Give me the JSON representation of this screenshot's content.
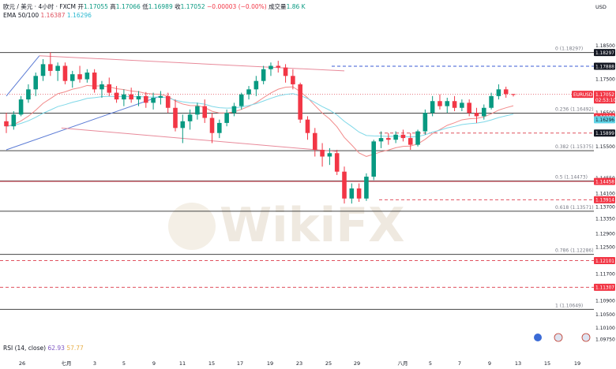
{
  "header": {
    "symbol_line": "欧元 / 美元 · 4小时 · FXCM",
    "open_label": "开",
    "open": "1.17055",
    "high_label": "高",
    "high": "1.17066",
    "low_label": "低",
    "low": "1.16989",
    "close_label": "收",
    "close": "1.17052",
    "change": "−0.00003 (−0.00%)",
    "volume_label": "成交量",
    "volume": "1.86 K",
    "ema_label": "EMA 50/100",
    "ema50": "1.16387",
    "ema100": "1.16296",
    "rsi_label": "RSI (14, close)",
    "rsi": "62.93",
    "rsi_ma": "57.77"
  },
  "currency": "USD",
  "watermark": "WikiFX",
  "colors": {
    "up": "#089981",
    "down": "#f23645",
    "ema50": "#f28b8b",
    "ema100": "#7fd8e8",
    "trend_blue": "#5b7bd5",
    "trend_red": "#e88a9a",
    "level_black": "#444444",
    "level_red": "#e0525f"
  },
  "chart_data": {
    "type": "candlestick",
    "symbol": "EURUSD",
    "timeframe": "4H",
    "ylim": [
      1.0925,
      1.1925
    ],
    "y_ticks": [
      1.185,
      1.175,
      1.165,
      1.155,
      1.1455,
      1.141,
      1.137,
      1.1335,
      1.129,
      1.125,
      1.121,
      1.117,
      1.113,
      1.109,
      1.105,
      1.101,
      1.0975
    ],
    "y_tick_labels": [
      "1.18500",
      "1.17500",
      "1.16500",
      "1.15500",
      "1.14550",
      "1.14100",
      "1.13700",
      "1.13350",
      "1.12900",
      "1.12500",
      "1.12100",
      "1.11700",
      "1.11300",
      "1.10900",
      "1.10500",
      "1.10100",
      "1.09750"
    ],
    "x_tick_labels": [
      "26",
      "七月",
      "3",
      "5",
      "9",
      "11",
      "15",
      "17",
      "19",
      "23",
      "25",
      "29",
      "八月",
      "5",
      "7",
      "9",
      "13",
      "15",
      "19"
    ],
    "fib_levels": [
      {
        "label": "0 (1.18297)",
        "value": 1.18297
      },
      {
        "label": "0.236 (1.16492)",
        "value": 1.16492
      },
      {
        "label": "0.382 (1.15375)",
        "value": 1.15375
      },
      {
        "label": "0.5 (1.14473)",
        "value": 1.14473
      },
      {
        "label": "0.618 (1.13571)",
        "value": 1.13571
      },
      {
        "label": "0.786 (1.12286)",
        "value": 1.12286
      },
      {
        "label": "1 (1.10649)",
        "value": 1.10649
      }
    ],
    "price_tags": [
      {
        "label": "1.18297",
        "value": 1.18297,
        "style": "dark"
      },
      {
        "label": "1.17888",
        "value": 1.17888,
        "style": "dark"
      },
      {
        "label": "EURUSD",
        "value": 1.17052,
        "style": "red-sym"
      },
      {
        "label": "1.17052",
        "value": 1.17052,
        "style": "red"
      },
      {
        "label": "02:53:10",
        "value": 1.16885,
        "style": "time"
      },
      {
        "label": "1.16387",
        "value": 1.16387,
        "style": "red"
      },
      {
        "label": "1.16296",
        "value": 1.16296,
        "style": "cyan"
      },
      {
        "label": "1.15899",
        "value": 1.15899,
        "style": "dark"
      },
      {
        "label": "1.14458",
        "value": 1.14458,
        "style": "red"
      },
      {
        "label": "1.13914",
        "value": 1.13914,
        "style": "red"
      },
      {
        "label": "1.12101",
        "value": 1.12101,
        "style": "red"
      },
      {
        "label": "1.11307",
        "value": 1.11307,
        "style": "red"
      }
    ],
    "h_dashed_levels": [
      1.17888,
      1.15899,
      1.13914,
      1.12101,
      1.11307
    ],
    "h_solid_red_level": 1.14458,
    "candles": [
      [
        1.1625,
        1.165,
        1.159,
        1.161
      ],
      [
        1.161,
        1.1655,
        1.16,
        1.1645
      ],
      [
        1.1645,
        1.17,
        1.164,
        1.169
      ],
      [
        1.169,
        1.1735,
        1.168,
        1.172
      ],
      [
        1.172,
        1.177,
        1.17,
        1.176
      ],
      [
        1.176,
        1.181,
        1.1745,
        1.1795
      ],
      [
        1.1795,
        1.183,
        1.176,
        1.1775
      ],
      [
        1.1775,
        1.18,
        1.1745,
        1.179
      ],
      [
        1.179,
        1.18,
        1.1735,
        1.1745
      ],
      [
        1.1745,
        1.1775,
        1.1725,
        1.1765
      ],
      [
        1.1765,
        1.179,
        1.174,
        1.175
      ],
      [
        1.175,
        1.178,
        1.174,
        1.177
      ],
      [
        1.177,
        1.178,
        1.171,
        1.172
      ],
      [
        1.172,
        1.1745,
        1.1695,
        1.1735
      ],
      [
        1.1735,
        1.1755,
        1.17,
        1.171
      ],
      [
        1.171,
        1.173,
        1.168,
        1.169
      ],
      [
        1.169,
        1.172,
        1.167,
        1.1705
      ],
      [
        1.1705,
        1.1725,
        1.168,
        1.169
      ],
      [
        1.169,
        1.1715,
        1.167,
        1.17
      ],
      [
        1.17,
        1.1712,
        1.1665,
        1.168
      ],
      [
        1.168,
        1.171,
        1.166,
        1.1695
      ],
      [
        1.1695,
        1.1715,
        1.1675,
        1.17
      ],
      [
        1.17,
        1.171,
        1.165,
        1.1665
      ],
      [
        1.1665,
        1.169,
        1.1595,
        1.1605
      ],
      [
        1.1605,
        1.1645,
        1.156,
        1.1625
      ],
      [
        1.1625,
        1.166,
        1.16,
        1.1645
      ],
      [
        1.1645,
        1.168,
        1.163,
        1.167
      ],
      [
        1.167,
        1.169,
        1.162,
        1.1635
      ],
      [
        1.1635,
        1.165,
        1.156,
        1.159
      ],
      [
        1.159,
        1.163,
        1.1575,
        1.162
      ],
      [
        1.162,
        1.166,
        1.161,
        1.165
      ],
      [
        1.165,
        1.168,
        1.164,
        1.167
      ],
      [
        1.167,
        1.171,
        1.166,
        1.1705
      ],
      [
        1.1705,
        1.173,
        1.169,
        1.172
      ],
      [
        1.172,
        1.176,
        1.17,
        1.1745
      ],
      [
        1.1745,
        1.179,
        1.1735,
        1.178
      ],
      [
        1.178,
        1.18,
        1.176,
        1.179
      ],
      [
        1.179,
        1.1805,
        1.177,
        1.1785
      ],
      [
        1.1785,
        1.1795,
        1.174,
        1.176
      ],
      [
        1.176,
        1.178,
        1.172,
        1.1735
      ],
      [
        1.1735,
        1.174,
        1.162,
        1.163
      ],
      [
        1.163,
        1.164,
        1.157,
        1.159
      ],
      [
        1.159,
        1.1605,
        1.152,
        1.154
      ],
      [
        1.154,
        1.156,
        1.149,
        1.152
      ],
      [
        1.152,
        1.1545,
        1.1495,
        1.153
      ],
      [
        1.153,
        1.154,
        1.1465,
        1.1475
      ],
      [
        1.1475,
        1.149,
        1.138,
        1.1395
      ],
      [
        1.1395,
        1.144,
        1.138,
        1.1425
      ],
      [
        1.1425,
        1.144,
        1.1385,
        1.1395
      ],
      [
        1.1395,
        1.147,
        1.1388,
        1.146
      ],
      [
        1.146,
        1.157,
        1.145,
        1.1565
      ],
      [
        1.1565,
        1.1595,
        1.1545,
        1.1575
      ],
      [
        1.1575,
        1.159,
        1.1555,
        1.157
      ],
      [
        1.157,
        1.1595,
        1.156,
        1.1585
      ],
      [
        1.1585,
        1.16,
        1.1565,
        1.1575
      ],
      [
        1.1575,
        1.159,
        1.154,
        1.1555
      ],
      [
        1.1555,
        1.16,
        1.155,
        1.1595
      ],
      [
        1.1595,
        1.166,
        1.1585,
        1.165
      ],
      [
        1.165,
        1.17,
        1.164,
        1.1685
      ],
      [
        1.1685,
        1.1705,
        1.166,
        1.167
      ],
      [
        1.167,
        1.1695,
        1.165,
        1.1685
      ],
      [
        1.1685,
        1.17,
        1.1655,
        1.1665
      ],
      [
        1.1665,
        1.169,
        1.1655,
        1.168
      ],
      [
        1.168,
        1.169,
        1.164,
        1.165
      ],
      [
        1.165,
        1.1665,
        1.162,
        1.164
      ],
      [
        1.164,
        1.1675,
        1.163,
        1.1665
      ],
      [
        1.1665,
        1.171,
        1.166,
        1.17
      ],
      [
        1.17,
        1.1735,
        1.169,
        1.172
      ],
      [
        1.172,
        1.1728,
        1.1695,
        1.1706
      ],
      [
        1.1706,
        1.17066,
        1.16989,
        1.17052
      ]
    ],
    "trend_lines": [
      {
        "name": "",
        "color": "trend_blue",
        "points": [
          [
            0,
            1.17
          ],
          [
            4.5,
            1.182
          ]
        ]
      },
      {
        "name": "",
        "color": "trend_blue",
        "points": [
          [
            0,
            1.154
          ],
          [
            21,
            1.17
          ]
        ]
      },
      {
        "name": "",
        "color": "trend_red",
        "points": [
          [
            4.5,
            1.182
          ],
          [
            46,
            1.1775
          ]
        ]
      },
      {
        "name": "",
        "color": "trend_red",
        "points": [
          [
            7.5,
            1.1605
          ],
          [
            45,
            1.1535
          ]
        ]
      }
    ]
  }
}
